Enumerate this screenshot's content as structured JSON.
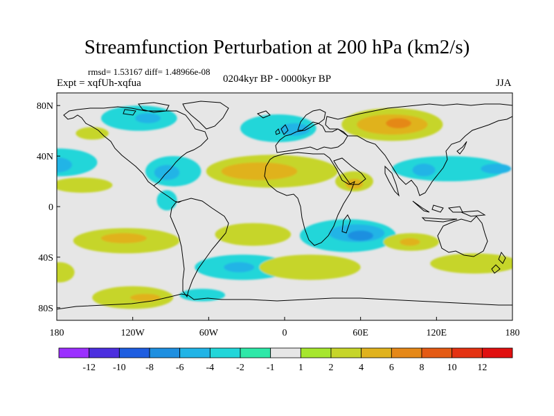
{
  "title": "Streamfunction Perturbation at 200 hPa (km2/s)",
  "stats": "rmsd= 1.53167 diff= 1.48966e-08",
  "experiment": "Expt = xqfUh-xqfua",
  "period": "0204kyr BP - 0000kyr BP",
  "season": "JJA",
  "map": {
    "lon_range": [
      -180,
      180
    ],
    "lat_range": [
      -90,
      90
    ],
    "x_ticks": [
      "180",
      "120W",
      "60W",
      "0",
      "60E",
      "120E",
      "180"
    ],
    "y_ticks": [
      "80N",
      "40N",
      "0",
      "40S",
      "80S"
    ],
    "background_color": "#e6e6e6",
    "features": [
      {
        "name": "NW Pacific",
        "kind": "positive",
        "level": 2,
        "lon": -160,
        "lat": 17,
        "rx": 24,
        "ry": 6
      },
      {
        "name": "North Pacific",
        "kind": "negative",
        "level": -2,
        "lon": -178,
        "lat": 35,
        "rx": 30,
        "ry": 11
      },
      {
        "name": "North Pacific core",
        "kind": "negative",
        "level": -4,
        "lon": -180,
        "lat": 33,
        "rx": 12,
        "ry": 6
      },
      {
        "name": "Arctic Canada",
        "kind": "negative",
        "level": -2,
        "lon": -115,
        "lat": 70,
        "rx": 30,
        "ry": 10
      },
      {
        "name": "Arctic Canada core",
        "kind": "negative",
        "level": -4,
        "lon": -108,
        "lat": 70,
        "rx": 10,
        "ry": 4
      },
      {
        "name": "Alaska",
        "kind": "positive",
        "level": 2,
        "lon": -152,
        "lat": 58,
        "rx": 13,
        "ry": 5
      },
      {
        "name": "North Atlantic",
        "kind": "negative",
        "level": -2,
        "lon": -5,
        "lat": 62,
        "rx": 30,
        "ry": 11
      },
      {
        "name": "Scandinavia",
        "kind": "negative",
        "level": -4,
        "lon": 8,
        "lat": 61,
        "rx": 12,
        "ry": 5
      },
      {
        "name": "Caribbean",
        "kind": "negative",
        "level": -2,
        "lon": -88,
        "lat": 28,
        "rx": 22,
        "ry": 12
      },
      {
        "name": "Caribbean core",
        "kind": "negative",
        "level": -4,
        "lon": -93,
        "lat": 27,
        "rx": 10,
        "ry": 6
      },
      {
        "name": "Sahara Atlantic",
        "kind": "positive",
        "level": 2,
        "lon": -10,
        "lat": 28,
        "rx": 52,
        "ry": 13
      },
      {
        "name": "Sahara core",
        "kind": "positive",
        "level": 4,
        "lon": -20,
        "lat": 28,
        "rx": 30,
        "ry": 7
      },
      {
        "name": "Arabia",
        "kind": "positive",
        "level": 2,
        "lon": 55,
        "lat": 20,
        "rx": 15,
        "ry": 8
      },
      {
        "name": "Arabia core",
        "kind": "positive",
        "level": 4,
        "lon": 55,
        "lat": 18,
        "rx": 7,
        "ry": 4
      },
      {
        "name": "Siberia",
        "kind": "positive",
        "level": 2,
        "lon": 85,
        "lat": 65,
        "rx": 40,
        "ry": 13
      },
      {
        "name": "Siberia mid",
        "kind": "positive",
        "level": 4,
        "lon": 85,
        "lat": 65,
        "rx": 28,
        "ry": 8
      },
      {
        "name": "Siberia core",
        "kind": "positive",
        "level": 6,
        "lon": 90,
        "lat": 66,
        "rx": 10,
        "ry": 4
      },
      {
        "name": "Central Asia",
        "kind": "negative",
        "level": -2,
        "lon": 130,
        "lat": 30,
        "rx": 45,
        "ry": 10
      },
      {
        "name": "Tibet",
        "kind": "negative",
        "level": -4,
        "lon": 110,
        "lat": 29,
        "rx": 9,
        "ry": 5
      },
      {
        "name": "West Pacific",
        "kind": "negative",
        "level": -4,
        "lon": 167,
        "lat": 30,
        "rx": 12,
        "ry": 4
      },
      {
        "name": "Equatorial Pacific",
        "kind": "negative",
        "level": -2,
        "lon": -93,
        "lat": 5,
        "rx": 8,
        "ry": 8
      },
      {
        "name": "SE Pacific",
        "kind": "positive",
        "level": 2,
        "lon": -125,
        "lat": -27,
        "rx": 42,
        "ry": 10
      },
      {
        "name": "SE Pacific core",
        "kind": "positive",
        "level": 4,
        "lon": -127,
        "lat": -25,
        "rx": 18,
        "ry": 4
      },
      {
        "name": "South Atlantic",
        "kind": "positive",
        "level": 2,
        "lon": -25,
        "lat": -22,
        "rx": 30,
        "ry": 9
      },
      {
        "name": "Indian Ocean",
        "kind": "negative",
        "level": -2,
        "lon": 50,
        "lat": -23,
        "rx": 38,
        "ry": 13
      },
      {
        "name": "Indian Ocean mid",
        "kind": "negative",
        "level": -4,
        "lon": 57,
        "lat": -21,
        "rx": 22,
        "ry": 7
      },
      {
        "name": "Indian Ocean core",
        "kind": "negative",
        "level": -6,
        "lon": 60,
        "lat": -23,
        "rx": 10,
        "ry": 4
      },
      {
        "name": "Australia",
        "kind": "positive",
        "level": 2,
        "lon": 100,
        "lat": -28,
        "rx": 22,
        "ry": 7
      },
      {
        "name": "Australia core",
        "kind": "positive",
        "level": 4,
        "lon": 99,
        "lat": -28,
        "rx": 8,
        "ry": 3
      },
      {
        "name": "Southern Ocean Atlantic",
        "kind": "negative",
        "level": -2,
        "lon": -33,
        "lat": -48,
        "rx": 38,
        "ry": 10
      },
      {
        "name": "Southern Ocean core",
        "kind": "negative",
        "level": -4,
        "lon": -36,
        "lat": -48,
        "rx": 12,
        "ry": 4
      },
      {
        "name": "South Indian",
        "kind": "positive",
        "level": 2,
        "lon": 20,
        "lat": -48,
        "rx": 40,
        "ry": 10
      },
      {
        "name": "South Pacific",
        "kind": "positive",
        "level": 2,
        "lon": 150,
        "lat": -45,
        "rx": 35,
        "ry": 8
      },
      {
        "name": "Antarctic Pacific",
        "kind": "positive",
        "level": 2,
        "lon": -120,
        "lat": -72,
        "rx": 32,
        "ry": 9
      },
      {
        "name": "Antarctic Pacific core",
        "kind": "positive",
        "level": 4,
        "lon": -110,
        "lat": -72,
        "rx": 12,
        "ry": 3
      },
      {
        "name": "Weddell",
        "kind": "negative",
        "level": -2,
        "lon": -65,
        "lat": -70,
        "rx": 18,
        "ry": 5
      },
      {
        "name": "Dateline south",
        "kind": "positive",
        "level": 2,
        "lon": -178,
        "lat": -52,
        "rx": 12,
        "ry": 8
      }
    ]
  },
  "colorbar": {
    "labels": [
      "-12",
      "-10",
      "-8",
      "-6",
      "-4",
      "-2",
      "-1",
      "1",
      "2",
      "4",
      "6",
      "8",
      "10",
      "12"
    ],
    "colors": [
      "#9b30ff",
      "#4c2fdf",
      "#1e5de0",
      "#1e8fe0",
      "#21b4e6",
      "#22d6d9",
      "#2ee8a8",
      "#e6e6e6",
      "#a6e62e",
      "#c6d52a",
      "#e0b21e",
      "#e58818",
      "#e45a14",
      "#e43212",
      "#e01010"
    ]
  },
  "land_color": "#000000"
}
